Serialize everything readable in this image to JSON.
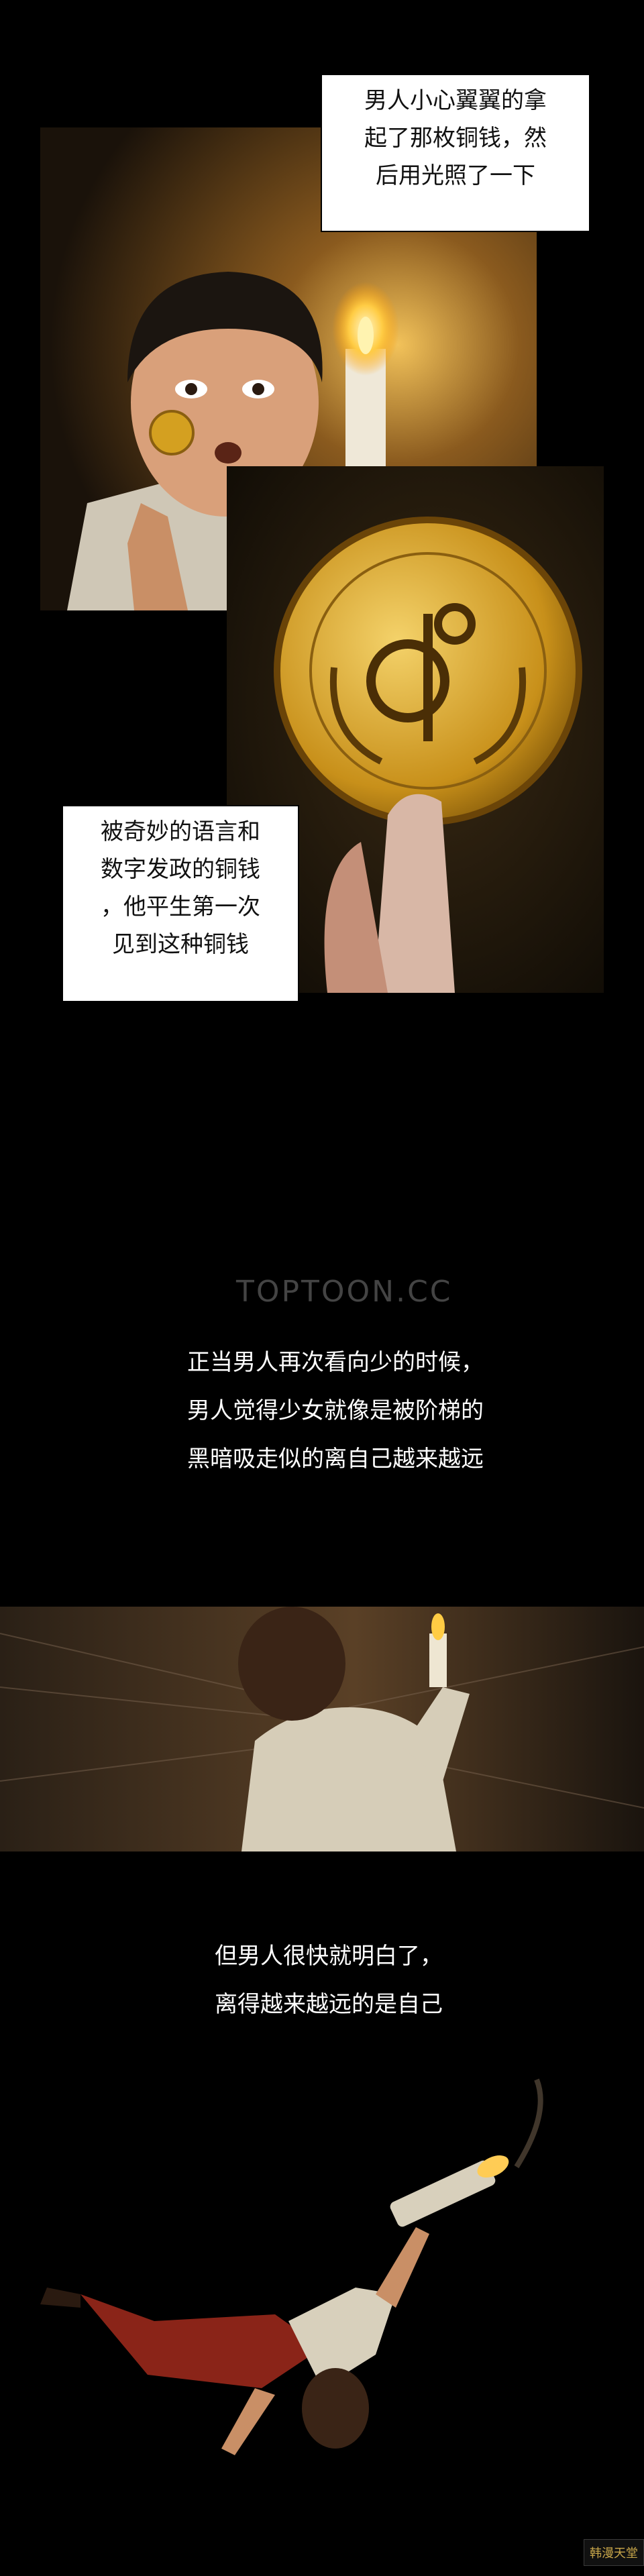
{
  "caption1": {
    "lines": [
      "男人小心翼翼的拿",
      "起了那枚铜钱，然",
      "后用光照了一下"
    ]
  },
  "caption2": {
    "lines": [
      "被奇妙的语言和",
      "数字发政的铜钱",
      "，他平生第一次",
      "见到这种铜钱"
    ]
  },
  "narration1": {
    "lines": [
      "正当男人再次看向少的时候，",
      "男人觉得少女就像是被阶梯的",
      "黑暗吸走似的离自己越来越远"
    ]
  },
  "narration2": {
    "lines": [
      "但男人很快就明白了，",
      "离得越来越远的是自己"
    ]
  },
  "watermark": "TOPTOON.CC",
  "corner_logo": "韩漫天堂"
}
